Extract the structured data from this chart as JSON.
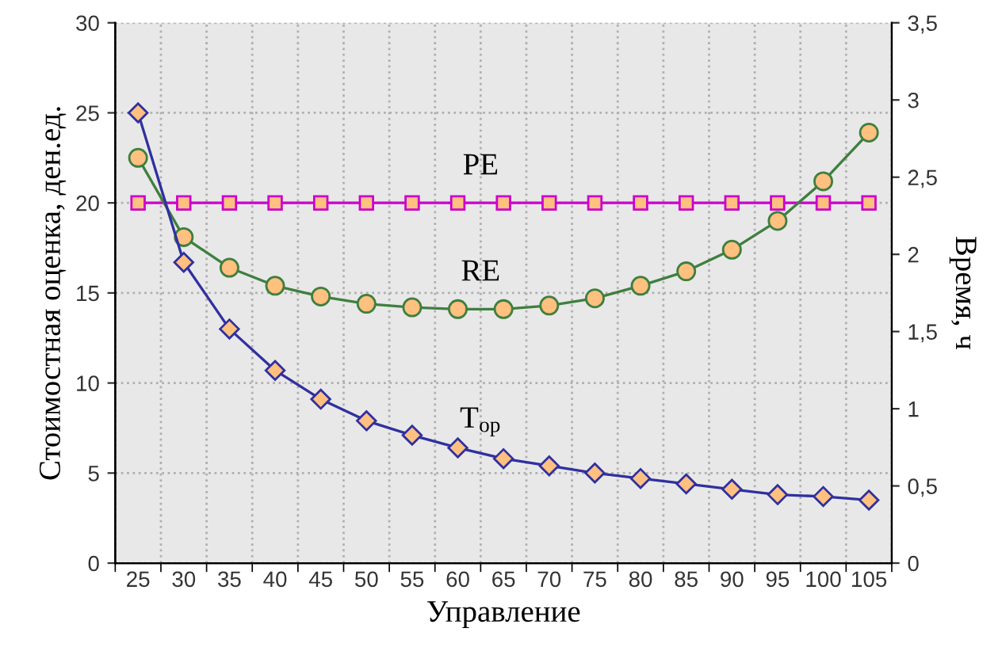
{
  "chart_data": {
    "type": "line",
    "xlabel": "Управление",
    "ylabel": "Стоимостная оценка, ден.ед.",
    "y2label": "Время, ч",
    "categories": [
      "25",
      "30",
      "35",
      "40",
      "45",
      "50",
      "55",
      "60",
      "65",
      "70",
      "75",
      "80",
      "85",
      "90",
      "95",
      "100",
      "105"
    ],
    "series": [
      {
        "color": "#cc00cc",
        "marker": "square",
        "values": [
          20,
          20,
          20,
          20,
          20,
          20,
          20,
          20,
          20,
          20,
          20,
          20,
          20,
          20,
          20,
          20,
          20
        ]
      },
      {
        "color": "#3f7f3f",
        "marker": "circle",
        "values": [
          22.5,
          18.1,
          16.4,
          15.4,
          14.8,
          14.4,
          14.2,
          14.1,
          14.1,
          14.3,
          14.7,
          15.4,
          16.2,
          17.4,
          19.0,
          21.2,
          23.9
        ]
      },
      {
        "color": "#3030a0",
        "marker": "diamond",
        "values": [
          25.0,
          16.7,
          13.0,
          10.7,
          9.1,
          7.9,
          7.1,
          6.4,
          5.8,
          5.4,
          5.0,
          4.7,
          4.4,
          4.1,
          3.8,
          3.7,
          3.5
        ]
      }
    ],
    "ylim": [
      0,
      30
    ],
    "yticks": [
      0,
      5,
      10,
      15,
      20,
      25,
      30
    ],
    "y2lim": [
      0,
      3.5
    ],
    "y2ticks": [
      0,
      {
        "value": 0.5,
        "label": "0,5"
      },
      1,
      {
        "value": 1.5,
        "label": "1,5"
      },
      2,
      {
        "value": 2.5,
        "label": "2,5"
      },
      3,
      {
        "value": 3.5,
        "label": "3,5"
      }
    ],
    "annotations": [
      "PE",
      "RE",
      "T$_{op}$"
    ],
    "grid": true,
    "legend": false,
    "line_style": "solid"
  }
}
